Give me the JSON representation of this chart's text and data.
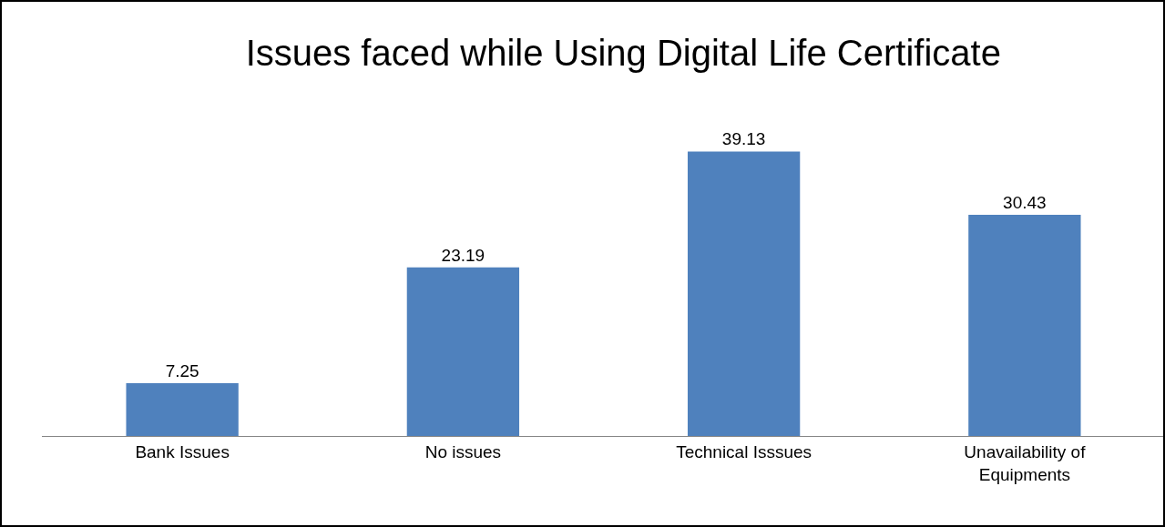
{
  "chart_data": {
    "type": "bar",
    "title": "Issues faced while Using Digital Life Certificate",
    "categories": [
      "Bank Issues",
      "No issues",
      "Technical Isssues",
      "Unavailability of Equipments"
    ],
    "values": [
      7.25,
      23.19,
      39.13,
      30.43
    ],
    "color": "#4f81bd",
    "data_labels": true
  }
}
